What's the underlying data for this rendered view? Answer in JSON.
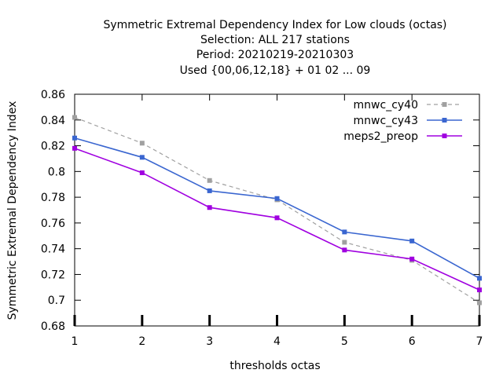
{
  "chart_data": {
    "type": "line",
    "title_lines": [
      "Symmetric Extremal Dependency Index  for Low clouds (octas)",
      "Selection: ALL     217 stations",
      "Period: 20210219-20210303",
      "Used {00,06,12,18} + 01 02 ... 09"
    ],
    "xlabel": "thresholds octas",
    "ylabel": "Symmetric Extremal Dependency Index",
    "x": [
      1,
      2,
      3,
      4,
      5,
      6,
      7
    ],
    "xticks": [
      "1",
      "2",
      "3",
      "4",
      "5",
      "6",
      "7"
    ],
    "yticks": [
      "0.68",
      "0.7",
      "0.72",
      "0.74",
      "0.76",
      "0.78",
      "0.8",
      "0.82",
      "0.84",
      "0.86"
    ],
    "ylim": [
      0.68,
      0.86
    ],
    "xlim": [
      1,
      7
    ],
    "grid": false,
    "legend_position": "top-right",
    "series": [
      {
        "name": "mnwc_cy40",
        "color": "#a0a0a0",
        "dashed": true,
        "values": [
          0.842,
          0.822,
          0.793,
          0.778,
          0.745,
          0.731,
          0.698
        ]
      },
      {
        "name": "mnwc_cy43",
        "color": "#3a66d0",
        "dashed": false,
        "values": [
          0.826,
          0.811,
          0.785,
          0.779,
          0.753,
          0.746,
          0.717
        ]
      },
      {
        "name": "meps2_preop",
        "color": "#a000e0",
        "dashed": false,
        "values": [
          0.818,
          0.799,
          0.772,
          0.764,
          0.739,
          0.732,
          0.708
        ]
      }
    ]
  }
}
